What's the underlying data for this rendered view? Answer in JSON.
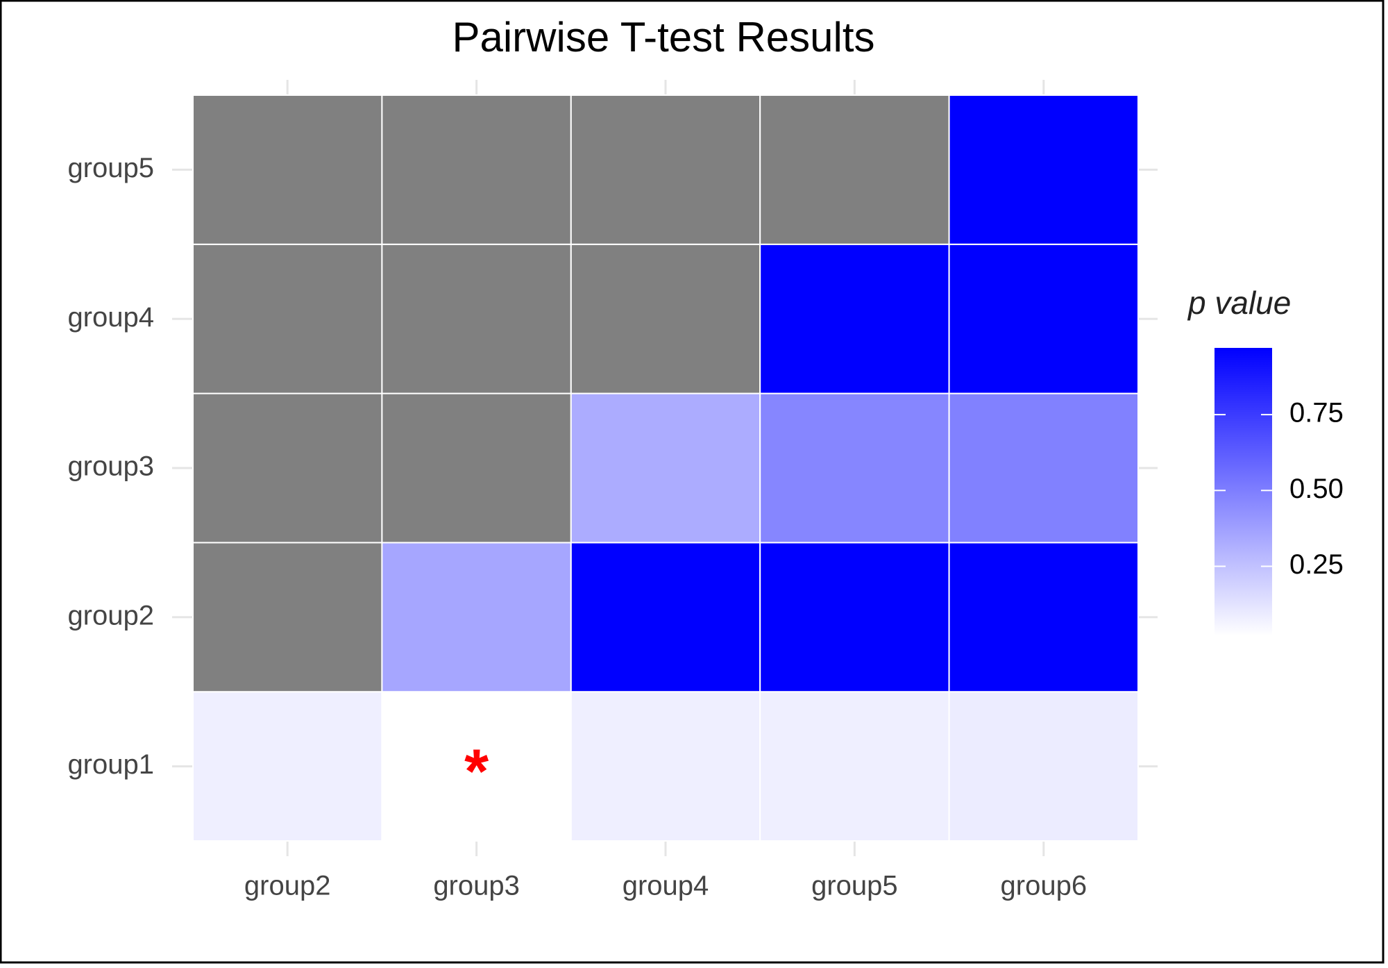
{
  "chart_data": {
    "type": "heatmap",
    "title": "Pairwise T-test Results",
    "x_categories": [
      "group2",
      "group3",
      "group4",
      "group5",
      "group6"
    ],
    "y_categories": [
      "group1",
      "group2",
      "group3",
      "group4",
      "group5"
    ],
    "values": [
      [
        0.08,
        0.02,
        0.08,
        0.08,
        0.09
      ],
      [
        null,
        0.35,
        0.97,
        0.97,
        0.97
      ],
      [
        null,
        null,
        0.33,
        0.47,
        0.49
      ],
      [
        null,
        null,
        null,
        0.97,
        0.97
      ],
      [
        null,
        null,
        null,
        null,
        0.97
      ]
    ],
    "colorscale": {
      "low": "#ffffff",
      "high": "#0000ff",
      "na": "#808080"
    },
    "legend_title": "p value",
    "clim": [
      0.02,
      0.97
    ],
    "cticks": [
      0.25,
      {
        "value": 0.5,
        "label": "0.50"
      },
      0.75
    ],
    "annotations": [
      {
        "x": "group3",
        "y": "group1",
        "text": "*",
        "color": "#ff0000"
      }
    ]
  }
}
